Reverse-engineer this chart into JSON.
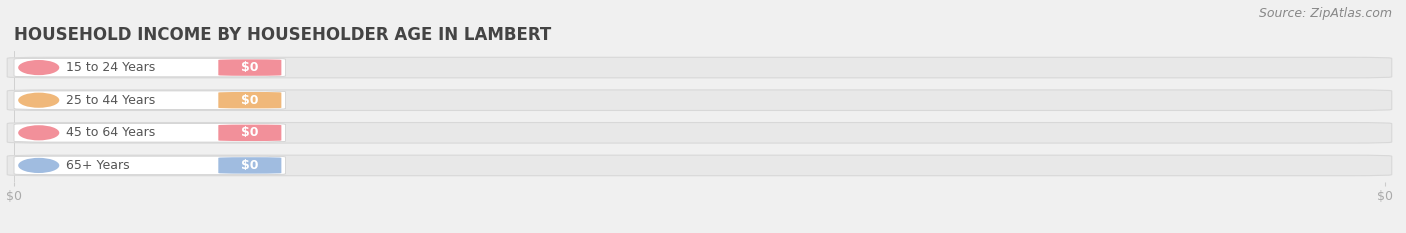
{
  "title": "HOUSEHOLD INCOME BY HOUSEHOLDER AGE IN LAMBERT",
  "source_text": "Source: ZipAtlas.com",
  "categories": [
    "15 to 24 Years",
    "25 to 44 Years",
    "45 to 64 Years",
    "65+ Years"
  ],
  "values": [
    0,
    0,
    0,
    0
  ],
  "bar_colors": [
    "#f2909a",
    "#f0b87a",
    "#f2909a",
    "#a0bce0"
  ],
  "background_color": "#f0f0f0",
  "bar_bg_color": "#e8e8e8",
  "bar_bg_edge_color": "#d8d8d8",
  "title_fontsize": 12,
  "label_fontsize": 9,
  "tick_fontsize": 9,
  "source_fontsize": 9,
  "title_color": "#444444",
  "source_color": "#888888",
  "tick_color": "#aaaaaa",
  "label_text_color": "#555555"
}
